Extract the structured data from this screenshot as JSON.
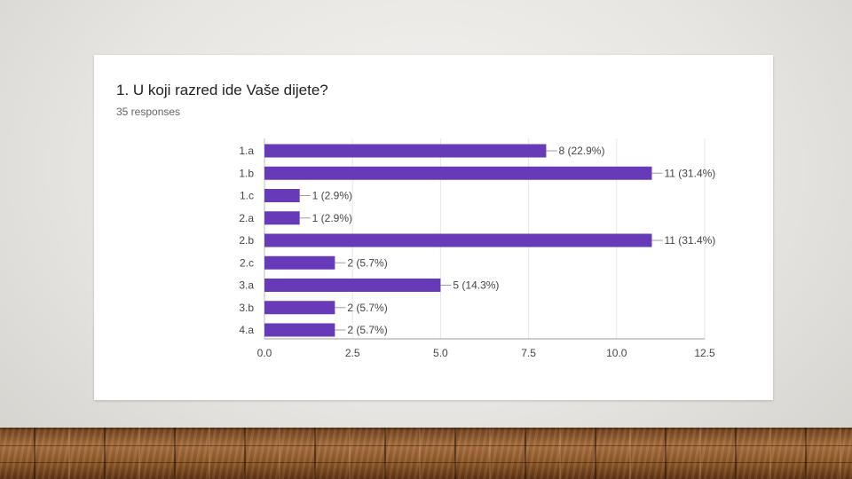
{
  "question": {
    "title": "1. U koji razred ide Vaše dijete?",
    "responses": "35 responses"
  },
  "chart_data": {
    "type": "bar",
    "orientation": "horizontal",
    "categories": [
      "1.a",
      "1.b",
      "1.c",
      "2.a",
      "2.b",
      "2.c",
      "3.a",
      "3.b",
      "4.a"
    ],
    "values": [
      8,
      11,
      1,
      1,
      11,
      2,
      5,
      2,
      2
    ],
    "data_labels": [
      "8 (22.9%)",
      "11 (31.4%)",
      "1 (2.9%)",
      "1 (2.9%)",
      "11 (31.4%)",
      "2 (5.7%)",
      "5 (14.3%)",
      "2 (5.7%)",
      "2 (5.7%)"
    ],
    "xlim": [
      0,
      12.5
    ],
    "x_ticks": [
      "0.0",
      "2.5",
      "5.0",
      "7.5",
      "10.0",
      "12.5"
    ],
    "x_tick_values": [
      0,
      2.5,
      5,
      7.5,
      10,
      12.5
    ],
    "bar_color": "#673ab7",
    "grid": true,
    "title": "1. U koji razred ide Vaše dijete?",
    "xlabel": "",
    "ylabel": ""
  }
}
